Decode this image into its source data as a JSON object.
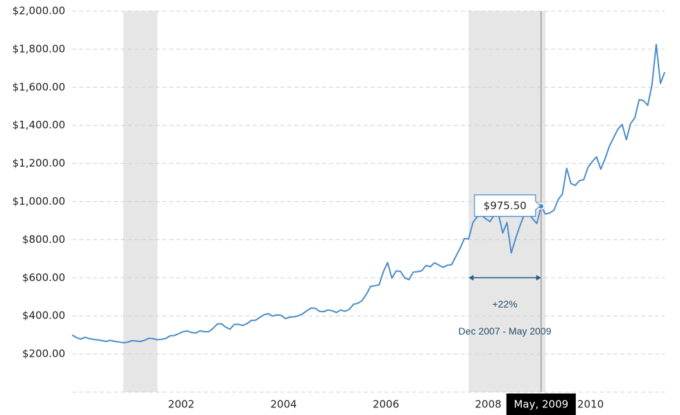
{
  "chart_data": {
    "type": "line",
    "x": [
      "2000-03",
      "2000-04",
      "2000-05",
      "2000-06",
      "2000-07",
      "2000-08",
      "2000-09",
      "2000-10",
      "2000-11",
      "2000-12",
      "2001-01",
      "2001-02",
      "2001-03",
      "2001-04",
      "2001-05",
      "2001-06",
      "2001-07",
      "2001-08",
      "2001-09",
      "2001-10",
      "2001-11",
      "2001-12",
      "2002-01",
      "2002-02",
      "2002-03",
      "2002-04",
      "2002-05",
      "2002-06",
      "2002-07",
      "2002-08",
      "2002-09",
      "2002-10",
      "2002-11",
      "2002-12",
      "2003-01",
      "2003-02",
      "2003-03",
      "2003-04",
      "2003-05",
      "2003-06",
      "2003-07",
      "2003-08",
      "2003-09",
      "2003-10",
      "2003-11",
      "2003-12",
      "2004-01",
      "2004-02",
      "2004-03",
      "2004-04",
      "2004-05",
      "2004-06",
      "2004-07",
      "2004-08",
      "2004-09",
      "2004-10",
      "2004-11",
      "2004-12",
      "2005-01",
      "2005-02",
      "2005-03",
      "2005-04",
      "2005-05",
      "2005-06",
      "2005-07",
      "2005-08",
      "2005-09",
      "2005-10",
      "2005-11",
      "2005-12",
      "2006-01",
      "2006-02",
      "2006-03",
      "2006-04",
      "2006-05",
      "2006-06",
      "2006-07",
      "2006-08",
      "2006-09",
      "2006-10",
      "2006-11",
      "2006-12",
      "2007-01",
      "2007-02",
      "2007-03",
      "2007-04",
      "2007-05",
      "2007-06",
      "2007-07",
      "2007-08",
      "2007-09",
      "2007-10",
      "2007-11",
      "2007-12",
      "2008-01",
      "2008-02",
      "2008-03",
      "2008-04",
      "2008-05",
      "2008-06",
      "2008-07",
      "2008-08",
      "2008-09",
      "2008-10",
      "2008-11",
      "2008-12",
      "2009-01",
      "2009-02",
      "2009-03",
      "2009-04",
      "2009-05",
      "2009-06",
      "2009-07",
      "2009-08",
      "2009-09",
      "2009-10",
      "2009-11",
      "2009-12",
      "2010-01",
      "2010-02",
      "2010-03",
      "2010-04",
      "2010-05",
      "2010-06",
      "2010-07",
      "2010-08",
      "2010-09",
      "2010-10",
      "2010-11",
      "2010-12",
      "2011-01",
      "2011-02",
      "2011-03",
      "2011-04",
      "2011-05",
      "2011-06",
      "2011-07",
      "2011-08",
      "2011-09",
      "2011-10"
    ],
    "values": [
      300,
      286,
      278,
      288,
      281,
      277,
      274,
      270,
      266,
      272,
      266,
      263,
      259,
      262,
      270,
      268,
      266,
      272,
      283,
      280,
      275,
      277,
      282,
      296,
      297,
      307,
      317,
      321,
      313,
      310,
      322,
      317,
      317,
      333,
      357,
      359,
      341,
      330,
      355,
      356,
      350,
      359,
      376,
      377,
      392,
      406,
      412,
      399,
      405,
      403,
      386,
      393,
      395,
      400,
      410,
      426,
      441,
      440,
      424,
      422,
      431,
      427,
      418,
      431,
      424,
      434,
      461,
      466,
      480,
      513,
      555,
      558,
      563,
      632,
      680,
      598,
      636,
      634,
      600,
      590,
      630,
      632,
      637,
      665,
      658,
      679,
      667,
      655,
      666,
      669,
      712,
      755,
      806,
      804,
      890,
      920,
      930,
      910,
      895,
      930,
      935,
      835,
      890,
      730,
      805,
      870,
      930,
      940,
      910,
      885,
      975.5,
      935,
      940,
      955,
      1010,
      1040,
      1175,
      1095,
      1085,
      1110,
      1115,
      1180,
      1210,
      1235,
      1170,
      1225,
      1290,
      1335,
      1380,
      1405,
      1325,
      1410,
      1440,
      1535,
      1530,
      1505,
      1610,
      1825,
      1620,
      1680
    ],
    "color": "#4a8cc9",
    "xlim": [
      "2000-03",
      "2011-10"
    ],
    "xticks": [
      2002,
      2004,
      2006,
      2008,
      2010
    ],
    "ylim": [
      0,
      2000
    ],
    "yticks": [
      {
        "value": 200,
        "label": "$200.00"
      },
      {
        "value": 400,
        "label": "$400.00"
      },
      {
        "value": 600,
        "label": "$600.00"
      },
      {
        "value": 800,
        "label": "$800.00"
      },
      {
        "value": 1000,
        "label": "$1,000.00"
      },
      {
        "value": 1200,
        "label": "$1,200.00"
      },
      {
        "value": 1400,
        "label": "$1,400.00"
      },
      {
        "value": 1600,
        "label": "$1,600.00"
      },
      {
        "value": 1800,
        "label": "$1,800.00"
      },
      {
        "value": 2000,
        "label": "$2,000.00"
      }
    ],
    "grid": true,
    "recessions": [
      {
        "start": "2001-03",
        "end": "2001-11"
      },
      {
        "start": "2007-12",
        "end": "2009-06"
      }
    ],
    "annotation": {
      "start": "2007-12",
      "end": "2009-05",
      "y": 600,
      "text": "+22%",
      "subtext": "Dec 2007 - May 2009"
    },
    "tooltip": {
      "index": 110,
      "value_label": "$975.50",
      "date_label": "May, 2009"
    }
  }
}
